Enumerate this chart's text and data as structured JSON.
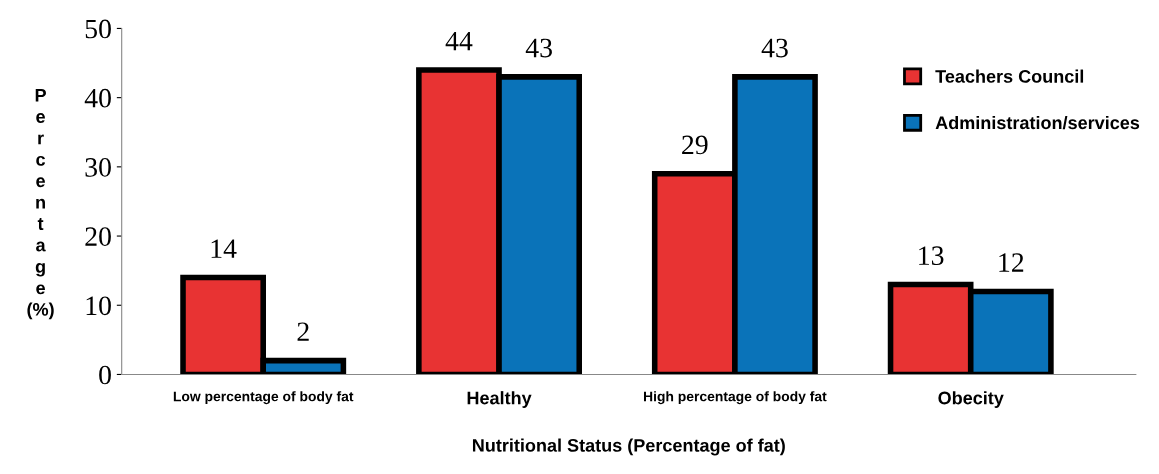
{
  "chart_data": {
    "type": "bar",
    "xlabel": "Nutritional Status (Percentage of fat)",
    "ylabel": "Percentage (%)",
    "categories": [
      "Low percentage of body fat",
      "Healthy",
      "High percentage of body fat",
      "Obecity"
    ],
    "series": [
      {
        "name": "Teachers Council",
        "color": "#e83333",
        "values": [
          14,
          44,
          29,
          13
        ]
      },
      {
        "name": "Administration/services",
        "color": "#0a73b9",
        "values": [
          2,
          43,
          43,
          12
        ]
      }
    ],
    "ylim": [
      0,
      50
    ],
    "yticks": [
      0,
      10,
      20,
      30,
      40,
      50
    ],
    "data_labels": true,
    "grid": false,
    "legend": "top right"
  }
}
